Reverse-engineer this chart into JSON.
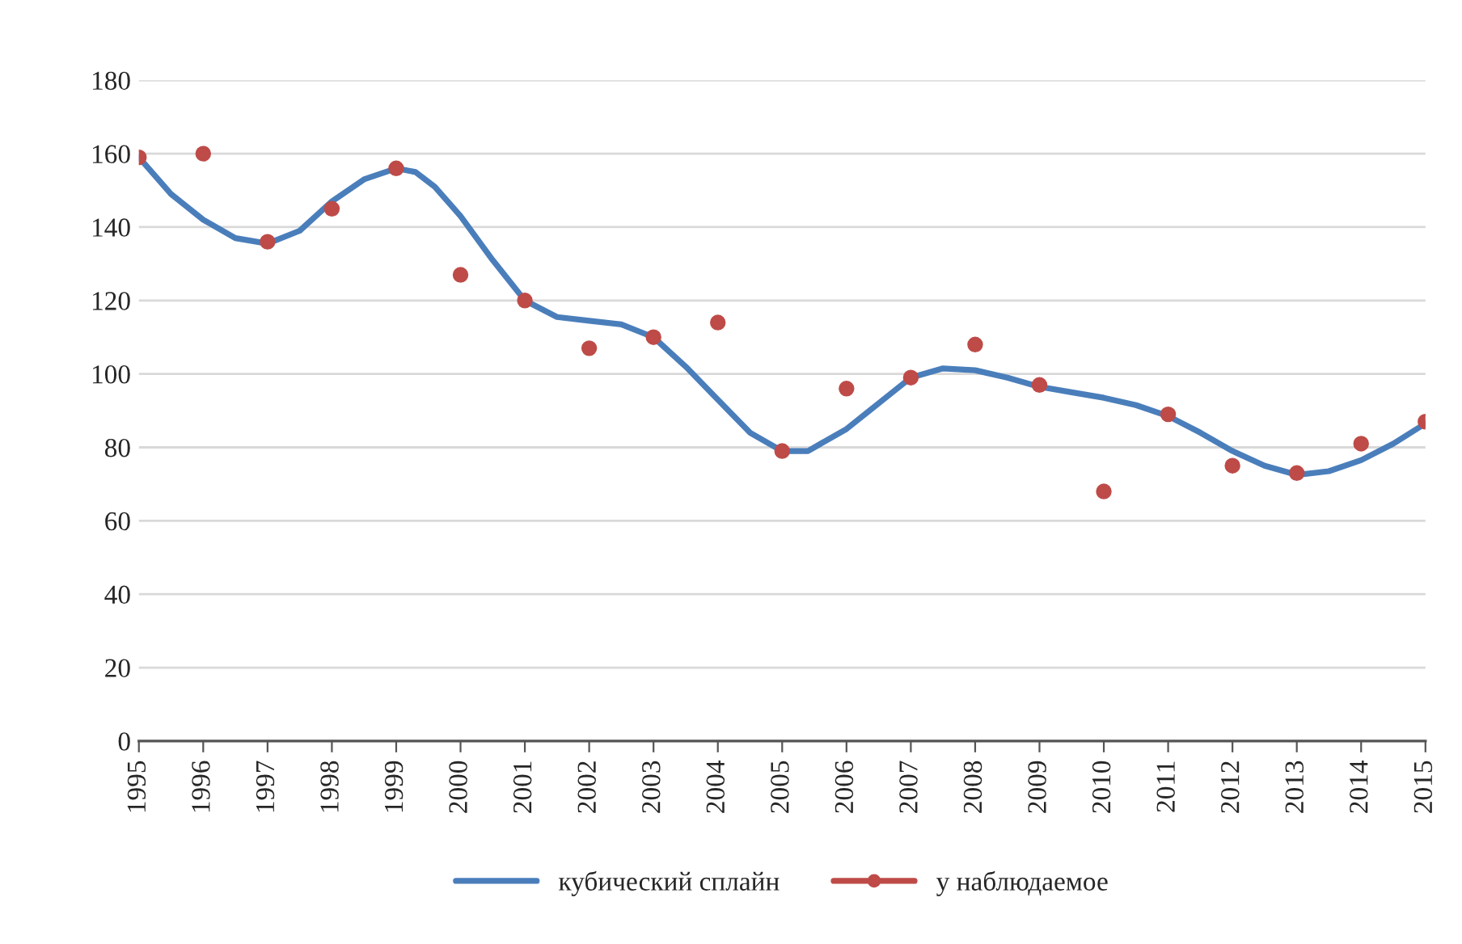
{
  "chart_data": {
    "type": "line",
    "x": [
      1995,
      1996,
      1997,
      1998,
      1999,
      2000,
      2001,
      2002,
      2003,
      2004,
      2005,
      2006,
      2007,
      2008,
      2009,
      2010,
      2011,
      2012,
      2013,
      2014,
      2015
    ],
    "series": [
      {
        "name": "кубический сплайн",
        "color": "#4a7ebb",
        "marker": "none",
        "x": [
          1995,
          1995.5,
          1996,
          1996.5,
          1997,
          1997.5,
          1998,
          1998.5,
          1999,
          1999.3,
          1999.6,
          2000,
          2000.5,
          2001,
          2001.5,
          2002,
          2002.5,
          2003,
          2003.5,
          2004,
          2004.5,
          2005,
          2005.4,
          2006,
          2006.5,
          2007,
          2007.5,
          2008,
          2008.5,
          2009,
          2009.5,
          2010,
          2010.5,
          2011,
          2011.5,
          2012,
          2012.5,
          2013,
          2013.5,
          2014,
          2014.5,
          2015
        ],
        "values": [
          159,
          149,
          142,
          137,
          135.5,
          139,
          147,
          153,
          156,
          155,
          151,
          143,
          131,
          120,
          115.5,
          114.5,
          113.5,
          110,
          102,
          93,
          84,
          79,
          79,
          85,
          92,
          99,
          101.5,
          101,
          99,
          96.5,
          95,
          93.5,
          91.5,
          88.5,
          84,
          79,
          75,
          72.5,
          73.5,
          76.5,
          81,
          86.5
        ]
      },
      {
        "name": "y наблюдаемое",
        "color": "#be4b48",
        "type": "scatter",
        "marker": "circle",
        "values": [
          159,
          160,
          136,
          145,
          156,
          127,
          120,
          107,
          110,
          114,
          79,
          96,
          99,
          108,
          97,
          68,
          89,
          75,
          73,
          81,
          87
        ]
      }
    ],
    "xlim": [
      1995,
      2015
    ],
    "xticks": [
      1995,
      1996,
      1997,
      1998,
      1999,
      2000,
      2001,
      2002,
      2003,
      2004,
      2005,
      2006,
      2007,
      2008,
      2009,
      2010,
      2011,
      2012,
      2013,
      2014,
      2015
    ],
    "ylim": [
      0,
      180
    ],
    "yticks": [
      0,
      20,
      40,
      60,
      80,
      100,
      120,
      140,
      160,
      180
    ],
    "grid": "y",
    "legend": "bottom",
    "line_style": "solid"
  }
}
